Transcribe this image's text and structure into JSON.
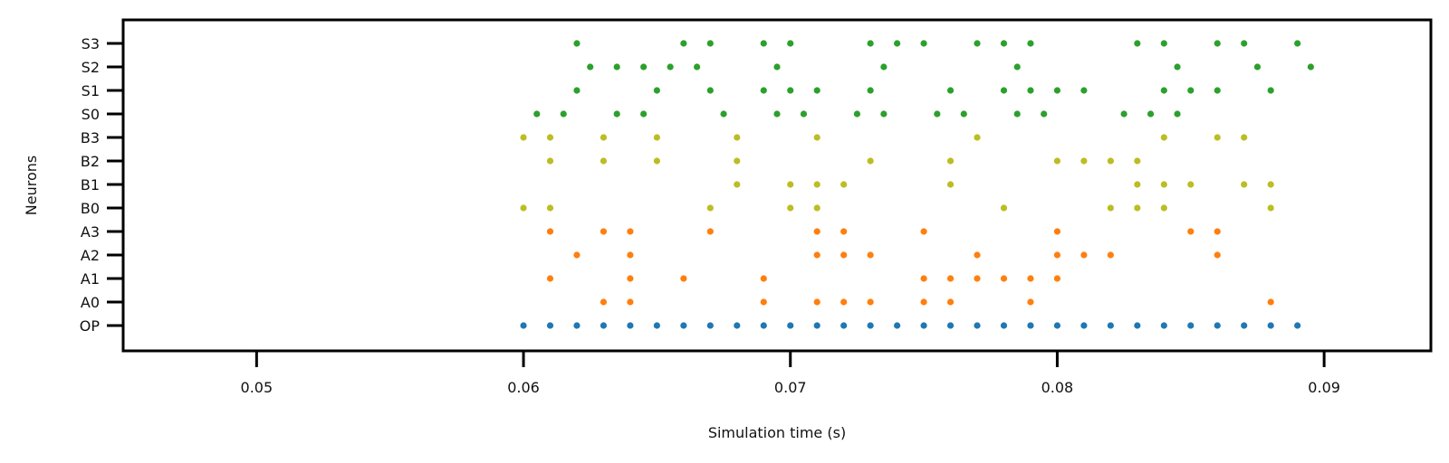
{
  "chart_data": {
    "type": "scatter",
    "title": "",
    "xlabel": "Simulation time (s)",
    "ylabel": "Neurons",
    "xlim": [
      0.045,
      0.094
    ],
    "xticks": [
      0.05,
      0.06,
      0.07,
      0.08,
      0.09
    ],
    "xtick_labels": [
      "0.05",
      "0.06",
      "0.07",
      "0.08",
      "0.09"
    ],
    "grid": false,
    "legend": "none",
    "neurons": [
      "OP",
      "A0",
      "A1",
      "A2",
      "A3",
      "B0",
      "B1",
      "B2",
      "B3",
      "S0",
      "S1",
      "S2",
      "S3"
    ],
    "colors": {
      "OP": "#1f77b4",
      "A": "#ff7f0e",
      "B": "#bcbd22",
      "S": "#2ca02c"
    },
    "series": [
      {
        "neuron": "OP",
        "color": "#1f77b4",
        "times": [
          0.06,
          0.061,
          0.062,
          0.063,
          0.064,
          0.065,
          0.066,
          0.067,
          0.068,
          0.069,
          0.07,
          0.071,
          0.072,
          0.073,
          0.074,
          0.075,
          0.076,
          0.077,
          0.078,
          0.079,
          0.08,
          0.081,
          0.082,
          0.083,
          0.084,
          0.085,
          0.086,
          0.087,
          0.088,
          0.089
        ]
      },
      {
        "neuron": "A0",
        "color": "#ff7f0e",
        "times": [
          0.063,
          0.064,
          0.069,
          0.071,
          0.072,
          0.073,
          0.075,
          0.076,
          0.079,
          0.088
        ]
      },
      {
        "neuron": "A1",
        "color": "#ff7f0e",
        "times": [
          0.061,
          0.064,
          0.066,
          0.069,
          0.075,
          0.076,
          0.077,
          0.078,
          0.079,
          0.08
        ]
      },
      {
        "neuron": "A2",
        "color": "#ff7f0e",
        "times": [
          0.062,
          0.064,
          0.071,
          0.072,
          0.073,
          0.077,
          0.08,
          0.081,
          0.082,
          0.086
        ]
      },
      {
        "neuron": "A3",
        "color": "#ff7f0e",
        "times": [
          0.061,
          0.063,
          0.064,
          0.067,
          0.071,
          0.072,
          0.075,
          0.08,
          0.085,
          0.086
        ]
      },
      {
        "neuron": "B0",
        "color": "#bcbd22",
        "times": [
          0.06,
          0.061,
          0.067,
          0.07,
          0.071,
          0.078,
          0.082,
          0.083,
          0.084,
          0.088
        ]
      },
      {
        "neuron": "B1",
        "color": "#bcbd22",
        "times": [
          0.068,
          0.07,
          0.071,
          0.072,
          0.076,
          0.083,
          0.084,
          0.085,
          0.087,
          0.088
        ]
      },
      {
        "neuron": "B2",
        "color": "#bcbd22",
        "times": [
          0.061,
          0.063,
          0.065,
          0.068,
          0.073,
          0.076,
          0.08,
          0.081,
          0.082,
          0.083
        ]
      },
      {
        "neuron": "B3",
        "color": "#bcbd22",
        "times": [
          0.06,
          0.061,
          0.063,
          0.065,
          0.068,
          0.071,
          0.077,
          0.084,
          0.086,
          0.087
        ]
      },
      {
        "neuron": "S0",
        "color": "#2ca02c",
        "times": [
          0.0605,
          0.0615,
          0.0635,
          0.0645,
          0.0675,
          0.0695,
          0.0705,
          0.0725,
          0.0735,
          0.0755,
          0.0765,
          0.0785,
          0.0795,
          0.0825,
          0.0835,
          0.0845
        ]
      },
      {
        "neuron": "S1",
        "color": "#2ca02c",
        "times": [
          0.062,
          0.065,
          0.067,
          0.069,
          0.07,
          0.071,
          0.073,
          0.076,
          0.078,
          0.079,
          0.08,
          0.081,
          0.084,
          0.085,
          0.086,
          0.088
        ]
      },
      {
        "neuron": "S2",
        "color": "#2ca02c",
        "times": [
          0.0625,
          0.0635,
          0.0645,
          0.0655,
          0.0665,
          0.0695,
          0.0735,
          0.0785,
          0.0845,
          0.0875,
          0.0895
        ]
      },
      {
        "neuron": "S3",
        "color": "#2ca02c",
        "times": [
          0.062,
          0.066,
          0.067,
          0.069,
          0.07,
          0.073,
          0.074,
          0.075,
          0.077,
          0.078,
          0.079,
          0.083,
          0.084,
          0.086,
          0.087,
          0.089
        ]
      }
    ]
  }
}
